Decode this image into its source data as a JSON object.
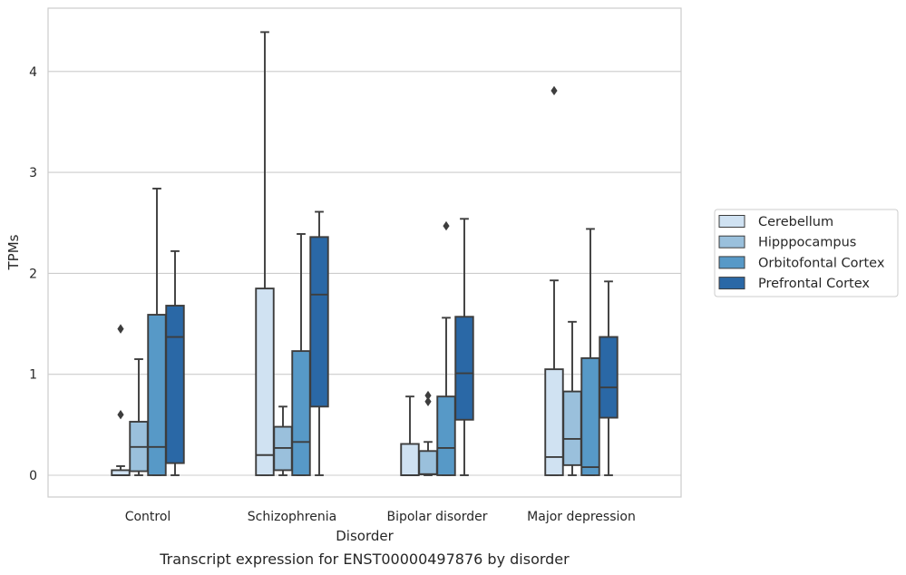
{
  "caption": "Transcript expression for ENST00000497876 by disorder",
  "chart_data": {
    "type": "box",
    "xlabel": "Disorder",
    "ylabel": "TPMs",
    "ylim": [
      -0.22,
      4.6
    ],
    "yticks": [
      0,
      1,
      2,
      3,
      4
    ],
    "grid": true,
    "legend_position": "right",
    "categories": [
      "Control",
      "Schizophrenia",
      "Bipolar disorder",
      "Major depression"
    ],
    "series": [
      {
        "name": "Cerebellum",
        "color": "#d0e2f2",
        "boxes": [
          {
            "q1": 0,
            "median": 0,
            "q3": 0.05,
            "whisker_low": 0,
            "whisker_high": 0.09,
            "outliers": [
              0.6,
              1.45
            ]
          },
          {
            "q1": 0,
            "median": 0.2,
            "q3": 1.85,
            "whisker_low": 0,
            "whisker_high": 4.39,
            "outliers": []
          },
          {
            "q1": 0,
            "median": 0,
            "q3": 0.31,
            "whisker_low": 0,
            "whisker_high": 0.78,
            "outliers": []
          },
          {
            "q1": 0,
            "median": 0.18,
            "q3": 1.05,
            "whisker_low": 0,
            "whisker_high": 1.93,
            "outliers": [
              3.81
            ]
          }
        ]
      },
      {
        "name": "Hipppocampus",
        "color": "#9ac0dc",
        "boxes": [
          {
            "q1": 0.04,
            "median": 0.28,
            "q3": 0.53,
            "whisker_low": 0,
            "whisker_high": 1.15,
            "outliers": []
          },
          {
            "q1": 0.05,
            "median": 0.27,
            "q3": 0.48,
            "whisker_low": 0,
            "whisker_high": 0.68,
            "outliers": []
          },
          {
            "q1": 0.01,
            "median": 0.01,
            "q3": 0.24,
            "whisker_low": 0,
            "whisker_high": 0.33,
            "outliers": [
              0.73,
              0.79
            ]
          },
          {
            "q1": 0.1,
            "median": 0.36,
            "q3": 0.83,
            "whisker_low": 0,
            "whisker_high": 1.52,
            "outliers": []
          }
        ]
      },
      {
        "name": "Orbitofontal Cortex",
        "color": "#5799c7",
        "boxes": [
          {
            "q1": 0,
            "median": 0.28,
            "q3": 1.59,
            "whisker_low": 0,
            "whisker_high": 2.84,
            "outliers": []
          },
          {
            "q1": 0,
            "median": 0.33,
            "q3": 1.23,
            "whisker_low": 0,
            "whisker_high": 2.39,
            "outliers": []
          },
          {
            "q1": 0,
            "median": 0.27,
            "q3": 0.78,
            "whisker_low": 0,
            "whisker_high": 1.56,
            "outliers": [
              2.47
            ]
          },
          {
            "q1": 0,
            "median": 0.08,
            "q3": 1.16,
            "whisker_low": 0,
            "whisker_high": 2.44,
            "outliers": []
          }
        ]
      },
      {
        "name": "Prefrontal Cortex",
        "color": "#2a68a6",
        "boxes": [
          {
            "q1": 0.12,
            "median": 1.37,
            "q3": 1.68,
            "whisker_low": 0,
            "whisker_high": 2.22,
            "outliers": []
          },
          {
            "q1": 0.68,
            "median": 1.79,
            "q3": 2.36,
            "whisker_low": 0,
            "whisker_high": 2.61,
            "outliers": []
          },
          {
            "q1": 0.55,
            "median": 1.01,
            "q3": 1.57,
            "whisker_low": 0,
            "whisker_high": 2.54,
            "outliers": []
          },
          {
            "q1": 0.57,
            "median": 0.87,
            "q3": 1.37,
            "whisker_low": 0,
            "whisker_high": 1.92,
            "outliers": []
          }
        ]
      }
    ]
  }
}
